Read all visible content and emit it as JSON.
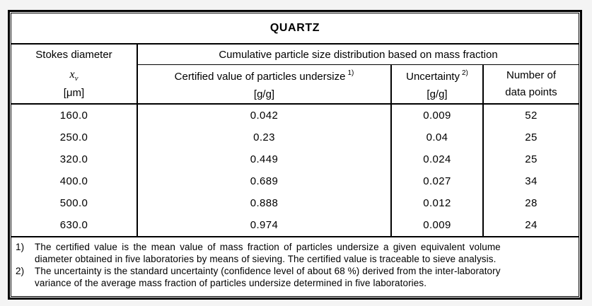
{
  "table": {
    "title": "QUARTZ",
    "header": {
      "col1_line1": "Stokes diameter",
      "col1_symbol_base": "x",
      "col1_symbol_sub": "v",
      "col1_unit": "[μm]",
      "span_header": "Cumulative particle size distribution based on mass fraction",
      "col2_label": "Certified value of particles undersize",
      "col2_sup": "1)",
      "col2_unit": "[g/g]",
      "col3_label": "Uncertainty",
      "col3_sup": "2)",
      "col3_unit": "[g/g]",
      "col4_line1": "Number of",
      "col4_line2": "data points"
    },
    "rows": [
      {
        "diameter": "160.0",
        "certified": "0.042",
        "uncertainty": "0.009",
        "points": "52"
      },
      {
        "diameter": "250.0",
        "certified": "0.23",
        "uncertainty": "0.04",
        "points": "25"
      },
      {
        "diameter": "320.0",
        "certified": "0.449",
        "uncertainty": "0.024",
        "points": "25"
      },
      {
        "diameter": "400.0",
        "certified": "0.689",
        "uncertainty": "0.027",
        "points": "34"
      },
      {
        "diameter": "500.0",
        "certified": "0.888",
        "uncertainty": "0.012",
        "points": "28"
      },
      {
        "diameter": "630.0",
        "certified": "0.974",
        "uncertainty": "0.009",
        "points": "24"
      }
    ],
    "footnotes": [
      {
        "marker": "1)",
        "lines": [
          "The certified value is the mean value of mass fraction of particles undersize a given equivalent volume",
          "diameter obtained in five laboratories by means of sieving. The certified value is traceable to sieve analysis."
        ]
      },
      {
        "marker": "2)",
        "lines": [
          "The uncertainty is the standard uncertainty (confidence level of about 68 %) derived from the inter-laboratory",
          "variance of the average mass fraction of particles undersize determined in five laboratories."
        ]
      }
    ]
  },
  "chart_data": {
    "type": "table",
    "title": "QUARTZ",
    "columns": [
      "Stokes diameter x_v [μm]",
      "Certified value of particles undersize [g/g]",
      "Uncertainty [g/g]",
      "Number of data points"
    ],
    "rows": [
      [
        160.0,
        0.042,
        0.009,
        52
      ],
      [
        250.0,
        0.23,
        0.04,
        25
      ],
      [
        320.0,
        0.449,
        0.024,
        25
      ],
      [
        400.0,
        0.689,
        0.027,
        34
      ],
      [
        500.0,
        0.888,
        0.012,
        28
      ],
      [
        630.0,
        0.974,
        0.009,
        24
      ]
    ]
  }
}
